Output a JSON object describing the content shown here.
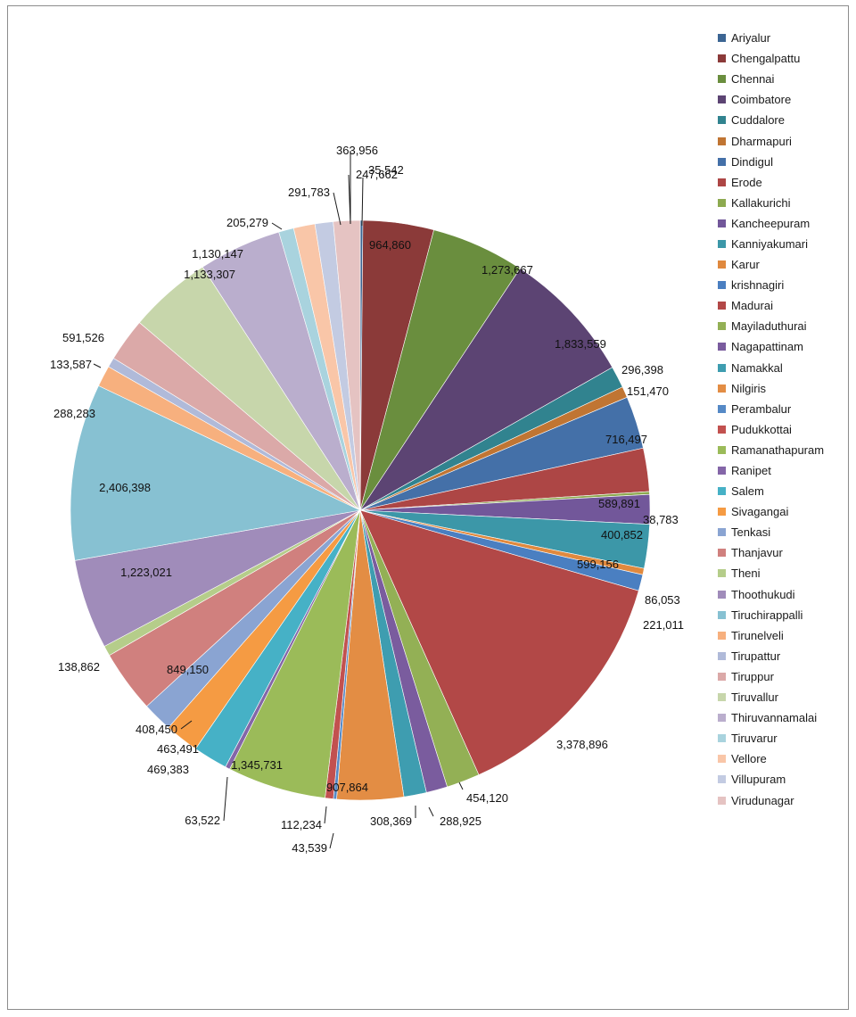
{
  "chart_data": {
    "type": "pie",
    "legend_position": "right",
    "start_angle_deg": 0,
    "direction": "clockwise",
    "series": [
      {
        "name": "Ariyalur",
        "value": 35542,
        "color": "#3c6593"
      },
      {
        "name": "Chengalpattu",
        "value": 964860,
        "color": "#8b3a39"
      },
      {
        "name": "Chennai",
        "value": 1273667,
        "color": "#6a8e3e"
      },
      {
        "name": "Coimbatore",
        "value": 1833559,
        "color": "#5c4473"
      },
      {
        "name": "Cuddalore",
        "value": 296398,
        "color": "#31838f"
      },
      {
        "name": "Dharmapuri",
        "value": 151470,
        "color": "#c07533"
      },
      {
        "name": "Dindigul",
        "value": 716497,
        "color": "#4470a8"
      },
      {
        "name": "Erode",
        "value": 589891,
        "color": "#ad4645"
      },
      {
        "name": "Kallakurichi",
        "value": 38783,
        "color": "#8daa50"
      },
      {
        "name": "Kancheepuram",
        "value": 400852,
        "color": "#72579a"
      },
      {
        "name": "Kanniyakumari",
        "value": 599156,
        "color": "#3c97a8"
      },
      {
        "name": "Karur",
        "value": 86053,
        "color": "#e0893e"
      },
      {
        "name": "krishnagiri",
        "value": 221011,
        "color": "#4a7fc1"
      },
      {
        "name": "Madurai",
        "value": 3378896,
        "color": "#b24847"
      },
      {
        "name": "Mayiladuthurai",
        "value": 454120,
        "color": "#93b055"
      },
      {
        "name": "Nagapattinam",
        "value": 288925,
        "color": "#7a5c9e"
      },
      {
        "name": "Namakkal",
        "value": 308369,
        "color": "#3e9db0"
      },
      {
        "name": "Nilgiris",
        "value": 907864,
        "color": "#e38d44"
      },
      {
        "name": "Perambalur",
        "value": 43539,
        "color": "#5589c6"
      },
      {
        "name": "Pudukkottai",
        "value": 112234,
        "color": "#c2514f"
      },
      {
        "name": "Ramanathapuram",
        "value": 1345731,
        "color": "#9bbb59"
      },
      {
        "name": "Ranipet",
        "value": 63522,
        "color": "#8466a8"
      },
      {
        "name": "Salem",
        "value": 469383,
        "color": "#46b1c6"
      },
      {
        "name": "Sivagangai",
        "value": 463491,
        "color": "#f59b43"
      },
      {
        "name": "Tenkasi",
        "value": 408450,
        "color": "#8aa4d2"
      },
      {
        "name": "Thanjavur",
        "value": 849150,
        "color": "#d0807e"
      },
      {
        "name": "Theni",
        "value": 138862,
        "color": "#b5cd8a"
      },
      {
        "name": "Thoothukudi",
        "value": 1223021,
        "color": "#a08cba"
      },
      {
        "name": "Tiruchirappalli",
        "value": 2406398,
        "color": "#87c1d2"
      },
      {
        "name": "Tirunelveli",
        "value": 288283,
        "color": "#f7b07e"
      },
      {
        "name": "Tirupattur",
        "value": 133587,
        "color": "#b0bad9"
      },
      {
        "name": "Tiruppur",
        "value": 591526,
        "color": "#dba9a8"
      },
      {
        "name": "Tiruvallur",
        "value": 1133307,
        "color": "#c7d6ab"
      },
      {
        "name": "Thiruvannamalai",
        "value": 1130147,
        "color": "#baaecd"
      },
      {
        "name": "Tiruvarur",
        "value": 205279,
        "color": "#a9d3de"
      },
      {
        "name": "Vellore",
        "value": 291783,
        "color": "#f9c6a8"
      },
      {
        "name": "Villupuram",
        "value": 247662,
        "color": "#c3cbe2"
      },
      {
        "name": "Virudunagar",
        "value": 363956,
        "color": "#e5c3c2"
      }
    ],
    "labels": [
      "35,542",
      "964,860",
      "1,273,667",
      "1,833,559",
      "296,398",
      "151,470",
      "716,497",
      "589,891",
      "38,783",
      "400,852",
      "599,156",
      "86,053",
      "221,011",
      "3,378,896",
      "454,120",
      "288,925",
      "308,369",
      "907,864",
      "43,539",
      "112,234",
      "1,345,731",
      "63,522",
      "469,383",
      "463,491",
      "408,450",
      "849,150",
      "138,862",
      "1,223,021",
      "2,406,398",
      "288,283",
      "133,587",
      "591,526",
      "1,133,307",
      "1,130,147",
      "205,279",
      "291,783",
      "247,662",
      "363,956"
    ]
  }
}
